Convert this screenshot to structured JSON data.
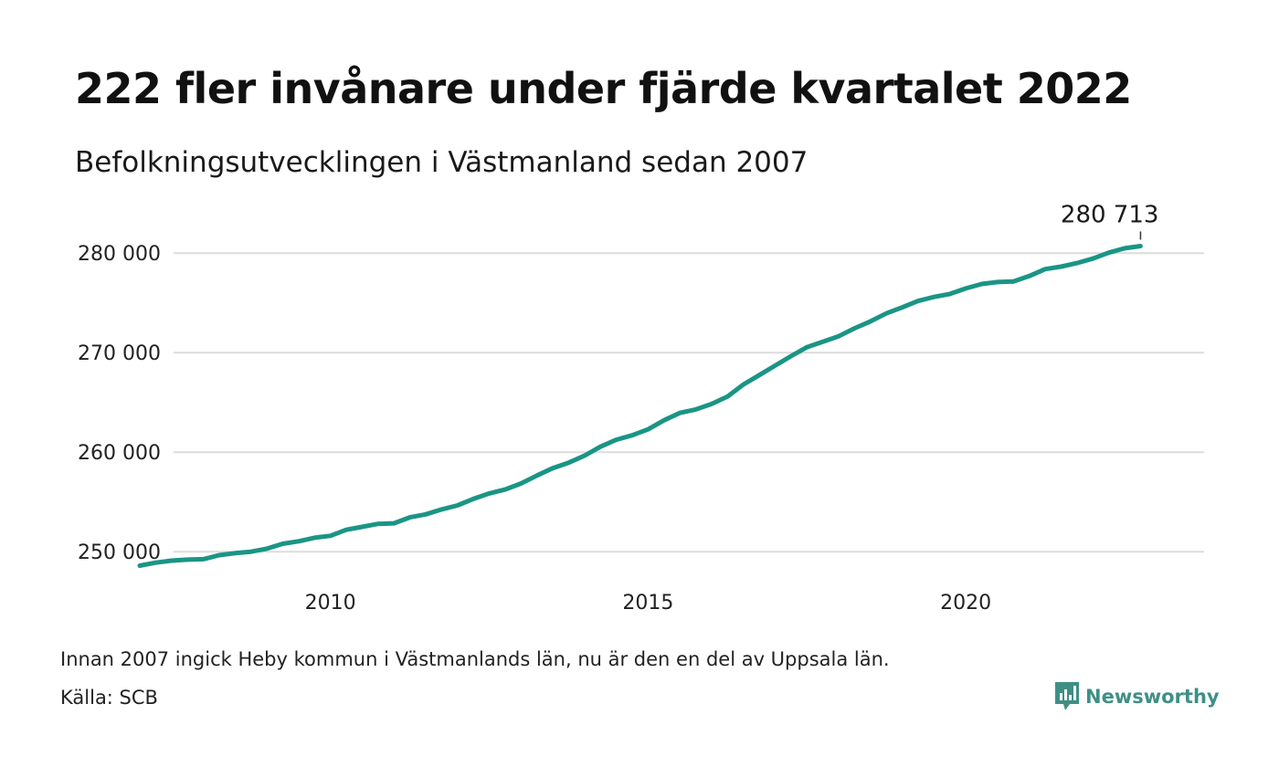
{
  "header": {
    "title": "222 fler invånare under fjärde kvartalet 2022",
    "subtitle": "Befolkningsutvecklingen i Västmanland sedan 2007"
  },
  "footer": {
    "note": "Innan 2007 ingick Heby kommun i Västmanlands län, nu är den en del av Uppsala län.",
    "source": "Källa: SCB",
    "brand": "Newsworthy"
  },
  "colors": {
    "line": "#1a9585",
    "grid": "#dcdcdc",
    "brand": "#3f8f86"
  },
  "chart_data": {
    "type": "line",
    "title": "222 fler invånare under fjärde kvartalet 2022",
    "subtitle": "Befolkningsutvecklingen i Västmanland sedan 2007",
    "xlabel": "",
    "ylabel": "",
    "xlim": [
      2007.0,
      2023.75
    ],
    "ylim": [
      248000,
      282500
    ],
    "x_ticks": [
      2010,
      2015,
      2020
    ],
    "x_tick_labels": [
      "2010",
      "2015",
      "2020"
    ],
    "y_ticks": [
      250000,
      260000,
      270000,
      280000
    ],
    "y_tick_labels": [
      "250 000",
      "260 000",
      "270 000",
      "280 000"
    ],
    "grid": "horizontal",
    "end_label": "280 713",
    "series": [
      {
        "x": [
          2007.0,
          2007.25,
          2007.5,
          2007.75,
          2008.0,
          2008.25,
          2008.5,
          2008.75,
          2009.0,
          2009.25,
          2009.5,
          2009.75,
          2010.0,
          2010.25,
          2010.5,
          2010.75,
          2011.0,
          2011.25,
          2011.5,
          2011.75,
          2012.0,
          2012.25,
          2012.5,
          2012.75,
          2013.0,
          2013.25,
          2013.5,
          2013.75,
          2014.0,
          2014.25,
          2014.5,
          2014.75,
          2015.0,
          2015.25,
          2015.5,
          2015.75,
          2016.0,
          2016.25,
          2016.5,
          2016.75,
          2017.0,
          2017.25,
          2017.5,
          2017.75,
          2018.0,
          2018.25,
          2018.5,
          2018.75,
          2019.0,
          2019.25,
          2019.5,
          2019.75,
          2020.0,
          2020.25,
          2020.5,
          2020.75,
          2021.0,
          2021.25,
          2021.5,
          2021.75,
          2022.0,
          2022.25,
          2022.5,
          2022.75
        ],
        "values": [
          248600,
          248900,
          249100,
          249200,
          249250,
          249650,
          249850,
          250000,
          250300,
          250800,
          251050,
          251400,
          251600,
          252200,
          252500,
          252800,
          252850,
          253450,
          253750,
          254250,
          254650,
          255300,
          255850,
          256250,
          256850,
          257650,
          258400,
          258950,
          259650,
          260550,
          261250,
          261700,
          262300,
          263200,
          263950,
          264300,
          264850,
          265600,
          266800,
          267750,
          268700,
          269650,
          270550,
          271100,
          271650,
          272450,
          273150,
          273950,
          274550,
          275200,
          275600,
          275900,
          276450,
          276900,
          277100,
          277150,
          277700,
          278400,
          278650,
          279000,
          279450,
          280050,
          280491,
          280713
        ]
      }
    ]
  }
}
